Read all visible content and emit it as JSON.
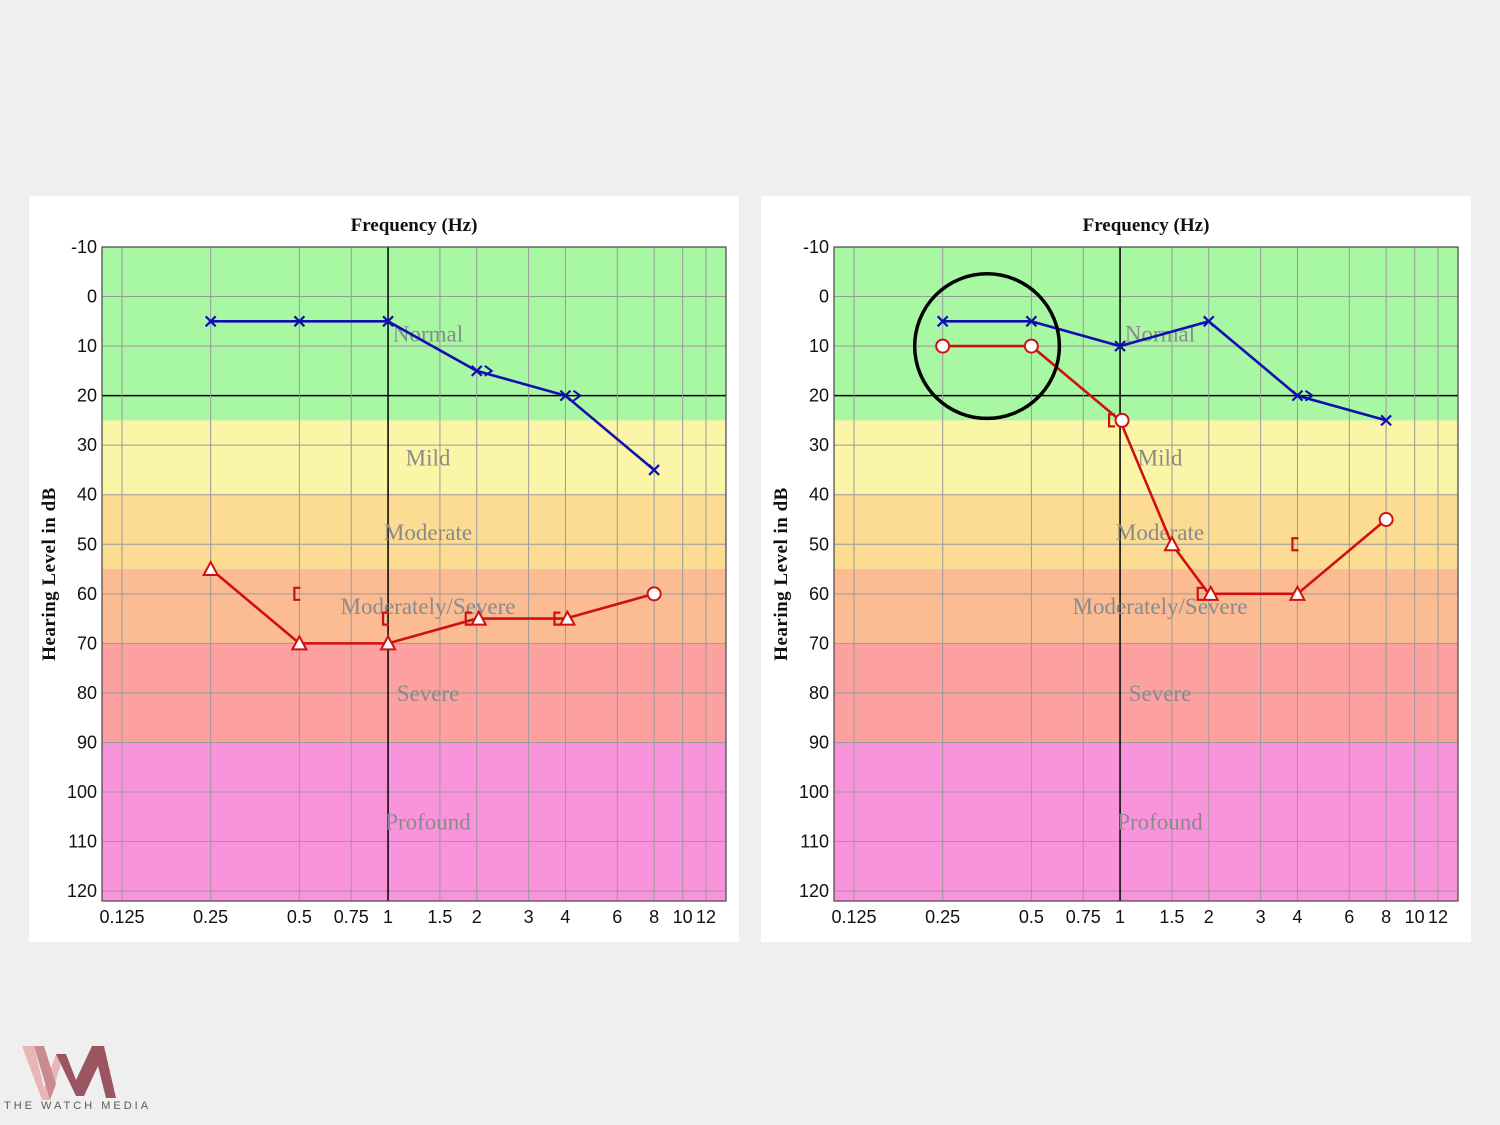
{
  "brand": {
    "name": "THE WATCH MEDIA",
    "colors": {
      "logo_light": "#e9b6b6",
      "logo_dark": "#8c4750"
    }
  },
  "chart_data": [
    {
      "type": "line",
      "title": "Frequency (Hz)",
      "xlabel": "Frequency (Hz)",
      "ylabel": "Hearing Level in dB",
      "x_scale": "log",
      "x_ticks": [
        "0.125",
        "0.25",
        "0.5",
        "0.75",
        "1",
        "1.5",
        "2",
        "3",
        "4",
        "6",
        "8",
        "10",
        "12"
      ],
      "x_tick_values": [
        0.125,
        0.25,
        0.5,
        0.75,
        1,
        1.5,
        2,
        3,
        4,
        6,
        8,
        10,
        12
      ],
      "y_ticks": [
        "-10",
        "0",
        "10",
        "20",
        "30",
        "40",
        "50",
        "60",
        "70",
        "80",
        "90",
        "100",
        "110",
        "120"
      ],
      "y_tick_values": [
        -10,
        0,
        10,
        20,
        30,
        40,
        50,
        60,
        70,
        80,
        90,
        100,
        110,
        120
      ],
      "ylim": [
        -10,
        122
      ],
      "y_inverted": true,
      "grid": true,
      "zones": [
        {
          "label": "Normal",
          "from": -10,
          "to": 25,
          "color": "#a8f7a3"
        },
        {
          "label": "Mild",
          "from": 25,
          "to": 40,
          "color": "#fbf5a7"
        },
        {
          "label": "Moderate",
          "from": 40,
          "to": 55,
          "color": "#fbdc92"
        },
        {
          "label": "Moderately/Severe",
          "from": 55,
          "to": 70,
          "color": "#fbbc94"
        },
        {
          "label": "Severe",
          "from": 70,
          "to": 90,
          "color": "#fca0a0"
        },
        {
          "label": "Profound",
          "from": 90,
          "to": 122,
          "color": "#f993dc"
        }
      ],
      "series": [
        {
          "color": "#1010b0",
          "points": [
            {
              "x": 0.25,
              "y": 5,
              "marker": "x"
            },
            {
              "x": 0.5,
              "y": 5,
              "marker": "x"
            },
            {
              "x": 1,
              "y": 5,
              "marker": "x"
            },
            {
              "x": 2,
              "y": 15,
              "marker": "x>"
            },
            {
              "x": 4,
              "y": 20,
              "marker": "x>"
            },
            {
              "x": 8,
              "y": 35,
              "marker": "x"
            }
          ]
        },
        {
          "color": "#d01010",
          "points": [
            {
              "x": 0.25,
              "y": 55,
              "marker": "triangle"
            },
            {
              "x": 0.5,
              "y": 70,
              "marker": "triangle"
            },
            {
              "x": 1,
              "y": 70,
              "marker": "triangle"
            },
            {
              "x": 2,
              "y": 65,
              "marker": "[triangle"
            },
            {
              "x": 4,
              "y": 65,
              "marker": "[triangle"
            },
            {
              "x": 8,
              "y": 60,
              "marker": "circle"
            }
          ],
          "extra_markers": [
            {
              "x": 0.5,
              "y": 60,
              "marker": "["
            },
            {
              "x": 1,
              "y": 65,
              "marker": "["
            }
          ]
        }
      ],
      "annotations": []
    },
    {
      "type": "line",
      "title": "Frequency (Hz)",
      "xlabel": "Frequency (Hz)",
      "ylabel": "Hearing Level in dB",
      "x_scale": "log",
      "x_ticks": [
        "0.125",
        "0.25",
        "0.5",
        "0.75",
        "1",
        "1.5",
        "2",
        "3",
        "4",
        "6",
        "8",
        "10",
        "12"
      ],
      "x_tick_values": [
        0.125,
        0.25,
        0.5,
        0.75,
        1,
        1.5,
        2,
        3,
        4,
        6,
        8,
        10,
        12
      ],
      "y_ticks": [
        "-10",
        "0",
        "10",
        "20",
        "30",
        "40",
        "50",
        "60",
        "70",
        "80",
        "90",
        "100",
        "110",
        "120"
      ],
      "y_tick_values": [
        -10,
        0,
        10,
        20,
        30,
        40,
        50,
        60,
        70,
        80,
        90,
        100,
        110,
        120
      ],
      "ylim": [
        -10,
        122
      ],
      "y_inverted": true,
      "grid": true,
      "zones": [
        {
          "label": "Normal",
          "from": -10,
          "to": 25,
          "color": "#a8f7a3"
        },
        {
          "label": "Mild",
          "from": 25,
          "to": 40,
          "color": "#fbf5a7"
        },
        {
          "label": "Moderate",
          "from": 40,
          "to": 55,
          "color": "#fbdc92"
        },
        {
          "label": "Moderately/Severe",
          "from": 55,
          "to": 70,
          "color": "#fbbc94"
        },
        {
          "label": "Severe",
          "from": 70,
          "to": 90,
          "color": "#fca0a0"
        },
        {
          "label": "Profound",
          "from": 90,
          "to": 122,
          "color": "#f993dc"
        }
      ],
      "series": [
        {
          "color": "#1010b0",
          "points": [
            {
              "x": 0.25,
              "y": 5,
              "marker": "x"
            },
            {
              "x": 0.5,
              "y": 5,
              "marker": "x"
            },
            {
              "x": 1,
              "y": 10,
              "marker": "x"
            },
            {
              "x": 2,
              "y": 5,
              "marker": "x"
            },
            {
              "x": 4,
              "y": 20,
              "marker": "x>"
            },
            {
              "x": 8,
              "y": 25,
              "marker": "x"
            }
          ]
        },
        {
          "color": "#d01010",
          "points": [
            {
              "x": 0.25,
              "y": 10,
              "marker": "circle"
            },
            {
              "x": 0.5,
              "y": 10,
              "marker": "circle"
            },
            {
              "x": 1,
              "y": 25,
              "marker": "[circle"
            },
            {
              "x": 1.5,
              "y": 50,
              "marker": "triangle"
            },
            {
              "x": 2,
              "y": 60,
              "marker": "[triangle"
            },
            {
              "x": 4,
              "y": 60,
              "marker": "triangle"
            },
            {
              "x": 8,
              "y": 45,
              "marker": "circle"
            }
          ],
          "extra_markers": [
            {
              "x": 4,
              "y": 50,
              "marker": "["
            }
          ]
        }
      ],
      "annotations": [
        {
          "type": "circle-highlight",
          "x_from": 0.25,
          "x_to": 0.5,
          "y_center": 10,
          "color": "#000000"
        }
      ]
    }
  ]
}
